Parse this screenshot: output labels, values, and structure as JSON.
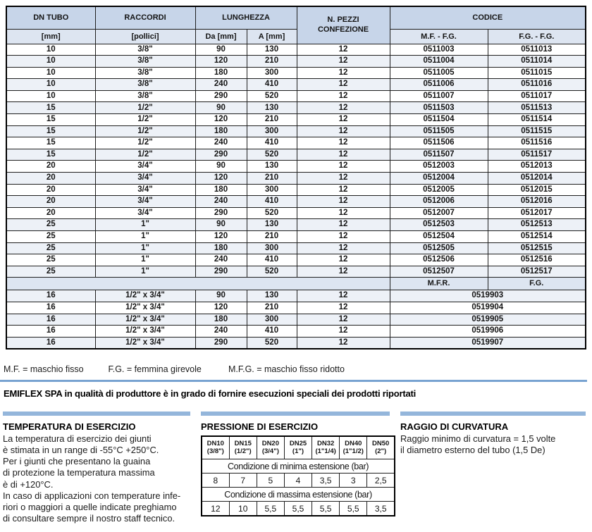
{
  "main_table": {
    "header": {
      "dn_title": "DN TUBO",
      "dn_unit": "[mm]",
      "raccordi_title": "RACCORDI",
      "raccordi_unit": "[pollici]",
      "lunghezza_title": "LUNGHEZZA",
      "lunghezza_da": "Da [mm]",
      "lunghezza_a": "A [mm]",
      "pezzi_line1": "N. PEZZI",
      "pezzi_line2": "CONFEZIONE",
      "codice_title": "CODICE",
      "codice_mf": "M.F. - F.G.",
      "codice_fg": "F.G. - F.G."
    },
    "rows": [
      [
        "10",
        "3/8\"",
        "90",
        "130",
        "12",
        "0511003",
        "0511013"
      ],
      [
        "10",
        "3/8\"",
        "120",
        "210",
        "12",
        "0511004",
        "0511014"
      ],
      [
        "10",
        "3/8\"",
        "180",
        "300",
        "12",
        "0511005",
        "0511015"
      ],
      [
        "10",
        "3/8\"",
        "240",
        "410",
        "12",
        "0511006",
        "0511016"
      ],
      [
        "10",
        "3/8\"",
        "290",
        "520",
        "12",
        "0511007",
        "0511017"
      ],
      [
        "15",
        "1/2\"",
        "90",
        "130",
        "12",
        "0511503",
        "0511513"
      ],
      [
        "15",
        "1/2\"",
        "120",
        "210",
        "12",
        "0511504",
        "0511514"
      ],
      [
        "15",
        "1/2\"",
        "180",
        "300",
        "12",
        "0511505",
        "0511515"
      ],
      [
        "15",
        "1/2\"",
        "240",
        "410",
        "12",
        "0511506",
        "0511516"
      ],
      [
        "15",
        "1/2\"",
        "290",
        "520",
        "12",
        "0511507",
        "0511517"
      ],
      [
        "20",
        "3/4\"",
        "90",
        "130",
        "12",
        "0512003",
        "0512013"
      ],
      [
        "20",
        "3/4\"",
        "120",
        "210",
        "12",
        "0512004",
        "0512014"
      ],
      [
        "20",
        "3/4\"",
        "180",
        "300",
        "12",
        "0512005",
        "0512015"
      ],
      [
        "20",
        "3/4\"",
        "240",
        "410",
        "12",
        "0512006",
        "0512016"
      ],
      [
        "20",
        "3/4\"",
        "290",
        "520",
        "12",
        "0512007",
        "0512017"
      ],
      [
        "25",
        "1\"",
        "90",
        "130",
        "12",
        "0512503",
        "0512513"
      ],
      [
        "25",
        "1\"",
        "120",
        "210",
        "12",
        "0512504",
        "0512514"
      ],
      [
        "25",
        "1\"",
        "180",
        "300",
        "12",
        "0512505",
        "0512515"
      ],
      [
        "25",
        "1\"",
        "240",
        "410",
        "12",
        "0512506",
        "0512516"
      ],
      [
        "25",
        "1\"",
        "290",
        "520",
        "12",
        "0512507",
        "0512517"
      ]
    ],
    "divider_row": {
      "mfr": "M.F.R.",
      "fg": "F.G."
    },
    "rows2": [
      [
        "16",
        "1/2\" x 3/4\"",
        "90",
        "130",
        "12",
        "0519903"
      ],
      [
        "16",
        "1/2\" x 3/4\"",
        "120",
        "210",
        "12",
        "0519904"
      ],
      [
        "16",
        "1/2\" x 3/4\"",
        "180",
        "300",
        "12",
        "0519905"
      ],
      [
        "16",
        "1/2\" x 3/4\"",
        "240",
        "410",
        "12",
        "0519906"
      ],
      [
        "16",
        "1/2\" x 3/4\"",
        "290",
        "520",
        "12",
        "0519907"
      ]
    ]
  },
  "legend": {
    "mf": "M.F. = maschio fisso",
    "fg": "F.G. = femmina girevole",
    "mfg": "M.F.G. = maschio fisso ridotto"
  },
  "notice": "EMIFLEX SPA in qualità di produttore è in grado di fornire esecuzioni speciali dei prodotti riportati",
  "sections": {
    "temperatura": {
      "title": "TEMPERATURA DI ESERCIZIO",
      "text": "La temperatura di esercizio dei giunti\nè stimata in un range di -55°C +250°C.\nPer i giunti che presentano la guaina\ndi protezione la temperatura massima\nè di +120°C.\nIn caso di applicazioni con temperature infe-\nriori o maggiori a quelle indicate preghiamo\ndi consultare sempre il nostro staff tecnico."
    },
    "pressione": {
      "title": "PRESSIONE DI ESERCIZIO",
      "table": {
        "columns": [
          {
            "dn": "DN10",
            "size": "(3/8\")"
          },
          {
            "dn": "DN15",
            "size": "(1/2\")"
          },
          {
            "dn": "DN20",
            "size": "(3/4\")"
          },
          {
            "dn": "DN25",
            "size": "(1\")"
          },
          {
            "dn": "DN32",
            "size": "(1\"1/4)"
          },
          {
            "dn": "DN40",
            "size": "(1\"1/2)"
          },
          {
            "dn": "DN50",
            "size": "(2\")"
          }
        ],
        "min_label": "Condizione di minima estensione (bar)",
        "min_values": [
          "8",
          "7",
          "5",
          "4",
          "3,5",
          "3",
          "2,5"
        ],
        "max_label": "Condizione di massima estensione (bar)",
        "max_values": [
          "12",
          "10",
          "5,5",
          "5,5",
          "5,5",
          "5,5",
          "3,5"
        ]
      }
    },
    "raggio": {
      "title": "RAGGIO DI CURVATURA",
      "text": "Raggio minimo di curvatura = 1,5 volte\nil diametro esterno del tubo (1,5 De)"
    }
  },
  "colors": {
    "header_blue": "#c7d5e9",
    "subheader_blue": "#dde5f1",
    "row_alt": "#edf1f7",
    "section_bar_blue": "#94b6db",
    "rule_blue": "#78a3d1"
  }
}
